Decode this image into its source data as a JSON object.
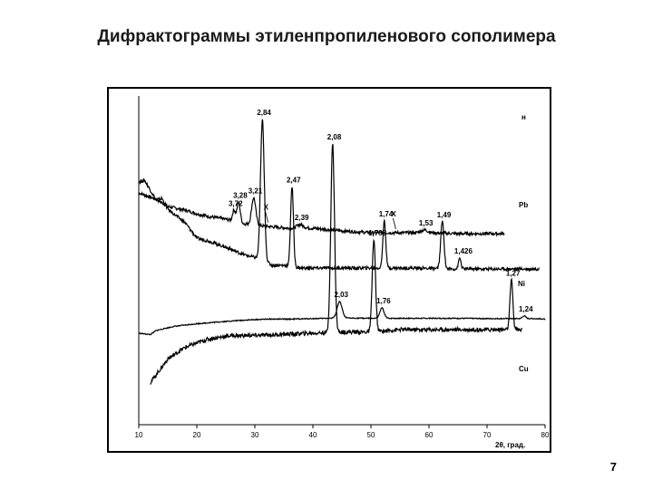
{
  "slide": {
    "title": "Дифрактограммы этиленпропиленового сополимера",
    "page_number": "7"
  },
  "chart_data": {
    "type": "line",
    "xlabel": "2θ, град.",
    "xlim": [
      10,
      80
    ],
    "xticks": [
      10,
      20,
      30,
      40,
      50,
      60,
      70,
      80
    ],
    "grid": false,
    "legend": "none",
    "line_color": "#000000",
    "series": [
      {
        "name": "н",
        "baseline": [
          [
            10,
            0.97
          ],
          [
            13,
            0.9
          ],
          [
            15,
            0.82
          ],
          [
            18,
            0.78
          ],
          [
            20,
            0.74
          ],
          [
            22,
            0.71
          ],
          [
            25,
            0.68
          ],
          [
            28,
            0.63
          ],
          [
            32,
            0.6
          ],
          [
            36,
            0.58
          ],
          [
            40,
            0.58
          ],
          [
            45,
            0.55
          ],
          [
            50,
            0.53
          ],
          [
            55,
            0.53
          ],
          [
            60,
            0.53
          ],
          [
            65,
            0.52
          ],
          [
            70,
            0.52
          ],
          [
            73,
            0.52
          ]
        ],
        "peaks": [
          {
            "x": 26.4,
            "h": 0.12,
            "w": 0.35,
            "label": "3,72"
          },
          {
            "x": 27.2,
            "h": 0.22,
            "w": 0.4,
            "label": "3,28"
          },
          {
            "x": 29.8,
            "h": 0.3,
            "w": 0.5,
            "label": "3,21"
          },
          {
            "x": 37.8,
            "h": 0.04,
            "w": 0.8,
            "label": "2,39"
          },
          {
            "x": 59.2,
            "h": 0.03,
            "w": 0.8,
            "label": "1,53"
          }
        ],
        "annotations": [
          {
            "text": "X",
            "x": 31.5
          },
          {
            "text": "X",
            "x": 53.5
          }
        ]
      },
      {
        "name": "Pb",
        "baseline": [
          [
            10,
            1.0
          ],
          [
            11,
            1.02
          ],
          [
            13,
            0.8
          ],
          [
            14,
            0.82
          ],
          [
            15,
            0.7
          ],
          [
            17,
            0.6
          ],
          [
            18,
            0.55
          ],
          [
            20,
            0.38
          ],
          [
            22,
            0.35
          ],
          [
            25,
            0.28
          ],
          [
            28,
            0.2
          ],
          [
            31,
            0.15
          ],
          [
            33,
            0.08
          ],
          [
            35,
            0.08
          ],
          [
            38,
            0.05
          ],
          [
            42,
            0.05
          ],
          [
            48,
            0.05
          ],
          [
            52,
            0.05
          ],
          [
            58,
            0.05
          ],
          [
            63,
            0.04
          ],
          [
            70,
            0.04
          ],
          [
            75,
            0.04
          ],
          [
            79,
            0.04
          ]
        ],
        "peaks": [
          {
            "x": 31.3,
            "h": 1.55,
            "w": 0.45,
            "label": "2,84"
          },
          {
            "x": 36.4,
            "h": 0.88,
            "w": 0.35,
            "label": "2,47"
          },
          {
            "x": 52.3,
            "h": 0.52,
            "w": 0.35,
            "label": "1,74"
          },
          {
            "x": 62.3,
            "h": 0.52,
            "w": 0.4,
            "label": "1,49"
          },
          {
            "x": 65.3,
            "h": 0.12,
            "w": 0.3,
            "label": "1,426"
          }
        ]
      },
      {
        "name": "Ni",
        "baseline": [
          [
            10,
            0.3
          ],
          [
            12,
            0.25
          ],
          [
            13,
            0.4
          ],
          [
            16,
            0.55
          ],
          [
            20,
            0.65
          ],
          [
            24,
            0.72
          ],
          [
            28,
            0.78
          ],
          [
            32,
            0.82
          ],
          [
            36,
            0.82
          ],
          [
            40,
            0.84
          ],
          [
            45,
            0.86
          ],
          [
            50,
            0.85
          ],
          [
            55,
            0.85
          ],
          [
            60,
            0.85
          ],
          [
            65,
            0.85
          ],
          [
            70,
            0.84
          ],
          [
            74,
            0.84
          ],
          [
            78,
            0.84
          ],
          [
            80,
            0.82
          ]
        ],
        "peaks": [
          {
            "x": 44.6,
            "h": 0.6,
            "w": 0.6,
            "label": "2,03"
          },
          {
            "x": 51.9,
            "h": 0.38,
            "w": 0.5,
            "label": "1,76"
          },
          {
            "x": 76.4,
            "h": 0.1,
            "w": 0.4,
            "label": "1,24"
          }
        ]
      },
      {
        "name": "Cu",
        "baseline": [
          [
            12,
            0.55
          ],
          [
            15,
            0.75
          ],
          [
            18,
            0.85
          ],
          [
            22,
            0.92
          ],
          [
            26,
            0.95
          ],
          [
            30,
            0.95
          ],
          [
            35,
            0.96
          ],
          [
            40,
            0.97
          ],
          [
            45,
            0.98
          ],
          [
            50,
            0.98
          ],
          [
            55,
            1.0
          ],
          [
            60,
            1.0
          ],
          [
            65,
            1.0
          ],
          [
            70,
            1.0
          ],
          [
            73,
            1.0
          ],
          [
            76,
            1.0
          ]
        ],
        "peaks": [
          {
            "x": 43.4,
            "h": 1.6,
            "w": 0.45,
            "label": "2,08"
          },
          {
            "x": 50.5,
            "h": 0.78,
            "w": 0.4,
            "label": "1,798"
          },
          {
            "x": 74.2,
            "h": 0.42,
            "w": 0.35,
            "label": "1,27"
          }
        ]
      }
    ]
  }
}
